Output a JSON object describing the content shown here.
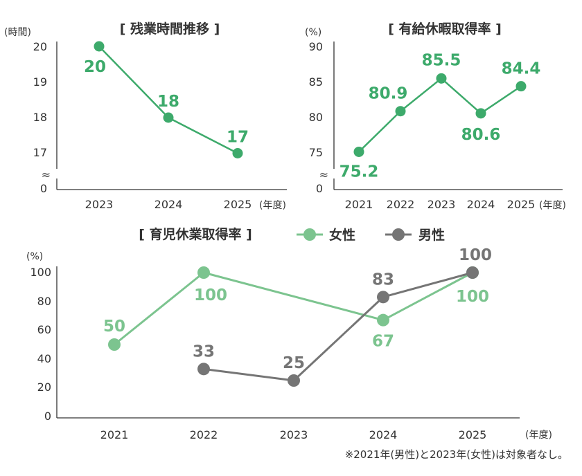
{
  "colors": {
    "green": "#3daa6b",
    "light_green": "#7cc48f",
    "gray": "#757575",
    "axis": "#333333"
  },
  "chart_data": [
    {
      "type": "line",
      "title": "[ 残業時間推移 ]",
      "y_unit": "(時間)",
      "x_unit": "(年度)",
      "categories": [
        "2023",
        "2024",
        "2025"
      ],
      "y_ticks": [
        "20",
        "19",
        "18",
        "17",
        "0"
      ],
      "ylim": [
        17,
        20
      ],
      "axis_break": "≈",
      "series": [
        {
          "values": [
            20,
            18,
            17
          ],
          "labels": [
            "20",
            "18",
            "17"
          ]
        }
      ]
    },
    {
      "type": "line",
      "title": "[ 有給休暇取得率 ]",
      "y_unit": "(%)",
      "x_unit": "(年度)",
      "categories": [
        "2021",
        "2022",
        "2023",
        "2024",
        "2025"
      ],
      "y_ticks": [
        "90",
        "85",
        "80",
        "75",
        "0"
      ],
      "ylim": [
        75,
        90
      ],
      "axis_break": "≈",
      "series": [
        {
          "values": [
            75.2,
            80.9,
            85.5,
            80.6,
            84.4
          ],
          "labels": [
            "75.2",
            "80.9",
            "85.5",
            "80.6",
            "84.4"
          ]
        }
      ]
    },
    {
      "type": "line",
      "title": "[ 育児休業取得率 ]",
      "y_unit": "(%)",
      "x_unit": "(年度)",
      "categories": [
        "2021",
        "2022",
        "2023",
        "2024",
        "2025"
      ],
      "y_ticks": [
        "100",
        "80",
        "60",
        "40",
        "20",
        "0"
      ],
      "ylim": [
        0,
        100
      ],
      "legend_position": "top",
      "series": [
        {
          "name": "女性",
          "values": [
            50,
            100,
            null,
            67,
            100
          ],
          "labels": [
            "50",
            "100",
            null,
            "67",
            "100"
          ]
        },
        {
          "name": "男性",
          "values": [
            null,
            33,
            25,
            83,
            100
          ],
          "labels": [
            null,
            "33",
            "25",
            "83",
            "100"
          ]
        }
      ],
      "note": "※2021年(男性)と2023年(女性)は対象者なし。"
    }
  ]
}
